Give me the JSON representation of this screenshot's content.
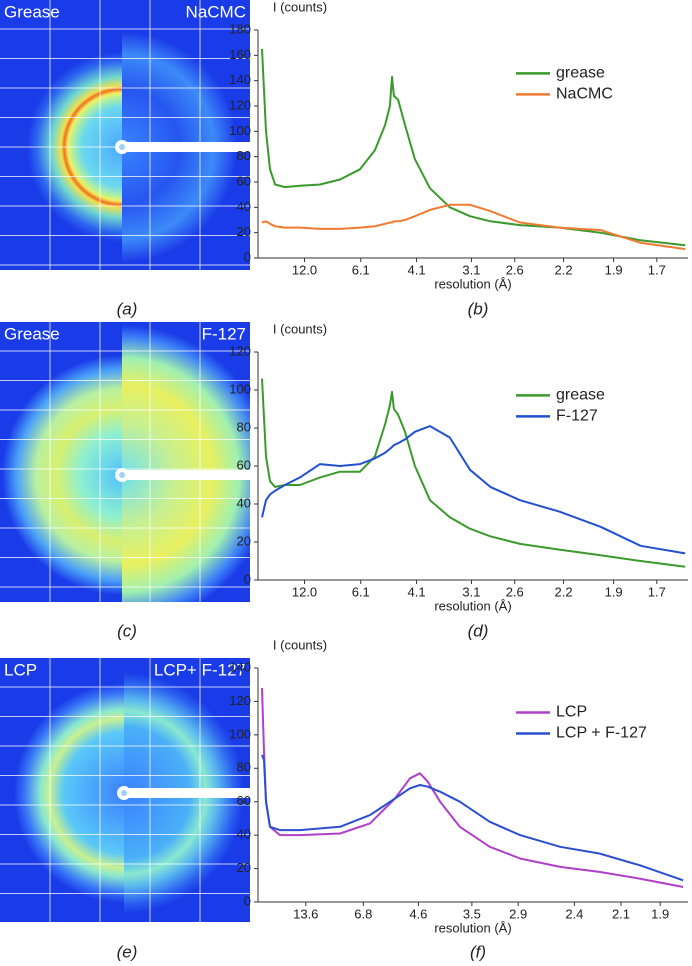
{
  "figure": {
    "images": [
      {
        "left": "Grease",
        "right": "NaCMC"
      },
      {
        "left": "Grease",
        "right": "F-127"
      },
      {
        "left": "LCP",
        "right": "LCP+ F-127"
      }
    ],
    "panel_labels": [
      "(a)",
      "(b)",
      "(c)",
      "(d)",
      "(e)",
      "(f)"
    ]
  },
  "chart_data": [
    {
      "type": "line",
      "ylabel": "I (counts)",
      "xlabel": "resolution (Å)",
      "xscale": "reciprocal",
      "legend": "upper right",
      "x": [
        44.6,
        35.5,
        29.5,
        24.3,
        18.1,
        13.0,
        9.48,
        7.45,
        6.14,
        5.43,
        5.03,
        4.86,
        4.79,
        4.73,
        4.6,
        4.4,
        4.14,
        3.8,
        3.43,
        3.12,
        2.86,
        2.55,
        2.23,
        1.97,
        1.77,
        1.59
      ],
      "xlim": [
        60,
        1.58
      ],
      "xticks": [
        {
          "value": 12,
          "label": "12.0"
        },
        6.1,
        4.1,
        3.1,
        2.6,
        2.2,
        1.9,
        1.7
      ],
      "ylim": [
        0,
        180
      ],
      "yticks": [
        0,
        20,
        40,
        60,
        80,
        100,
        120,
        140,
        160,
        180
      ],
      "series": [
        {
          "name": "grease",
          "color": "#3b9a2c",
          "values": [
            165,
            100,
            70,
            58,
            56,
            57,
            58,
            62,
            70,
            85,
            105,
            120,
            143,
            128,
            125,
            105,
            78,
            55,
            40,
            33,
            29,
            26,
            24,
            20,
            14,
            10
          ]
        },
        {
          "name": "NaCMC",
          "color": "#f07a30",
          "values": [
            28,
            29,
            27,
            25,
            24,
            24,
            23,
            23,
            24,
            25,
            27,
            28,
            28,
            29,
            29,
            30,
            33,
            38,
            42,
            42,
            37,
            28,
            24,
            22,
            12,
            7
          ]
        }
      ]
    },
    {
      "type": "line",
      "ylabel": "I (counts)",
      "xlabel": "resolution (Å)",
      "xscale": "reciprocal",
      "legend": "upper right",
      "x": [
        44.6,
        35.5,
        29.5,
        24.3,
        18.1,
        13.0,
        9.48,
        7.45,
        6.14,
        5.43,
        5.03,
        4.86,
        4.79,
        4.73,
        4.6,
        4.4,
        4.14,
        3.8,
        3.43,
        3.12,
        2.86,
        2.55,
        2.23,
        1.97,
        1.77,
        1.59
      ],
      "xlim": [
        60,
        1.58
      ],
      "xticks": [
        {
          "value": 12,
          "label": "12.0"
        },
        6.1,
        4.1,
        3.1,
        2.6,
        2.2,
        1.9,
        1.7
      ],
      "ylim": [
        0,
        120
      ],
      "yticks": [
        0,
        20,
        40,
        60,
        80,
        100,
        120
      ],
      "series": [
        {
          "name": "grease",
          "color": "#3b9a2c",
          "values": [
            106,
            65,
            52,
            49,
            50,
            50,
            54,
            57,
            57,
            65,
            82,
            92,
            99,
            90,
            87,
            78,
            60,
            42,
            33,
            27,
            23,
            19,
            16,
            13,
            10,
            7
          ]
        },
        {
          "name": "F-127",
          "color": "#2250d0",
          "values": [
            33,
            42,
            45,
            47,
            50,
            54,
            61,
            60,
            61,
            64,
            67,
            69,
            70,
            71,
            72,
            74,
            78,
            81,
            75,
            58,
            49,
            42,
            36,
            28,
            18,
            14
          ]
        }
      ]
    },
    {
      "type": "line",
      "ylabel": "I (counts)",
      "xlabel": "resolution (Å)",
      "xscale": "reciprocal",
      "legend": "upper right",
      "x": [
        56.8,
        49.5,
        44.0,
        36.0,
        24.6,
        15.1,
        8.53,
        6.43,
        5.33,
        4.84,
        4.56,
        4.36,
        4.08,
        3.7,
        3.24,
        2.88,
        2.51,
        2.23,
        2.0,
        1.8
      ],
      "xlim": [
        80,
        1.78
      ],
      "xticks": [
        13.6,
        6.8,
        4.6,
        3.5,
        2.9,
        2.4,
        2.1,
        1.9
      ],
      "ylim": [
        0,
        140
      ],
      "yticks": [
        0,
        20,
        40,
        60,
        80,
        100,
        120,
        140
      ],
      "series": [
        {
          "name": "LCP",
          "color": "#b040c8",
          "values": [
            128,
            90,
            60,
            45,
            40,
            40,
            41,
            47,
            62,
            74,
            77,
            72,
            60,
            45,
            33,
            26,
            21,
            18,
            14,
            9
          ]
        },
        {
          "name": "LCP + F-127",
          "color": "#2a4fd0",
          "values": [
            88,
            85,
            60,
            45,
            43,
            43,
            45,
            52,
            62,
            68,
            70,
            69,
            66,
            60,
            48,
            40,
            33,
            29,
            22,
            13
          ]
        }
      ]
    }
  ]
}
